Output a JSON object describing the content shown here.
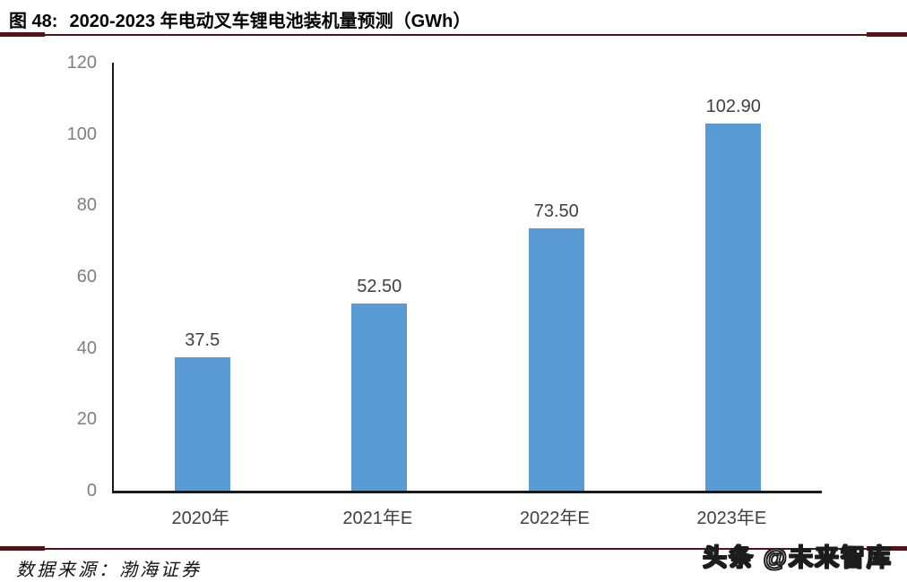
{
  "figure": {
    "label": "图 48:",
    "title": "2020-2023 年电动叉车锂电池装机量预测（GWh）"
  },
  "chart_data": {
    "type": "bar",
    "title": "2020-2023 年电动叉车锂电池装机量预测（GWh）",
    "unit": "GWh",
    "categories": [
      "2020年",
      "2021年E",
      "2022年E",
      "2023年E"
    ],
    "values": [
      37.5,
      52.5,
      73.5,
      102.9
    ],
    "value_labels": [
      "37.5",
      "52.50",
      "73.50",
      "102.90"
    ],
    "xlabel": "",
    "ylabel": "",
    "ylim": [
      0,
      120
    ],
    "yticks": [
      0,
      20,
      40,
      60,
      80,
      100,
      120
    ],
    "grid": false,
    "legend_position": "none",
    "bar_color": "#5B9BD5"
  },
  "footer": {
    "source": "数据来源：渤海证券",
    "watermark": "头条 @未来智库"
  },
  "colors": {
    "rule": "#551318",
    "bar": "#5B9BD5",
    "axis": "#1a1a1a",
    "tick_label": "#7f7f7f",
    "value_label": "#404040"
  }
}
